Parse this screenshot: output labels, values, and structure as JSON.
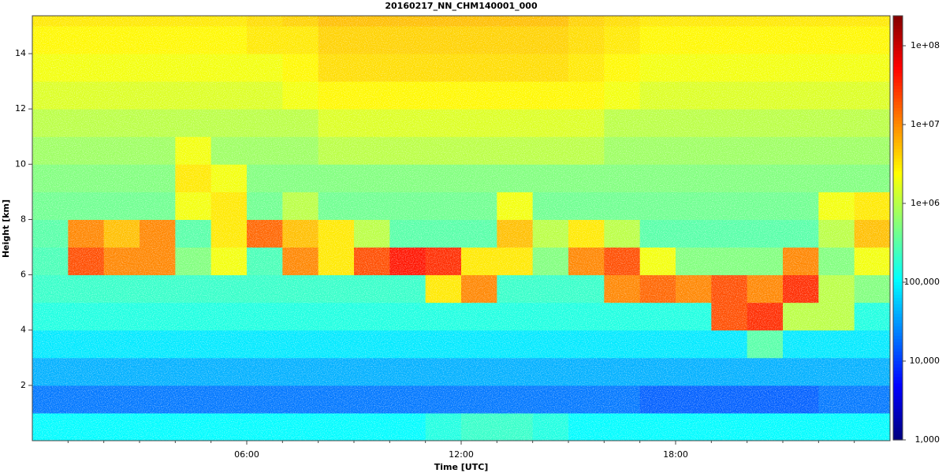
{
  "chart_data": {
    "type": "heatmap",
    "title": "20160217_NN_CHM140001_000",
    "xlabel": "Time [UTC]",
    "ylabel": "Height [km]",
    "xlim": [
      0,
      24
    ],
    "ylim": [
      0,
      15.37
    ],
    "xticks": [
      {
        "value": 6,
        "label": "06:00"
      },
      {
        "value": 12,
        "label": "12:00"
      },
      {
        "value": 18,
        "label": "18:00"
      }
    ],
    "xminor_ticks": [
      1,
      2,
      3,
      4,
      5,
      7,
      8,
      9,
      10,
      11,
      13,
      14,
      15,
      16,
      17,
      19,
      20,
      21,
      22,
      23
    ],
    "yticks": [
      2,
      4,
      6,
      8,
      10,
      12,
      14
    ],
    "xbins": [
      0,
      1,
      2,
      3,
      4,
      5,
      6,
      7,
      8,
      9,
      10,
      11,
      12,
      13,
      14,
      15,
      16,
      17,
      18,
      19,
      20,
      21,
      22,
      23,
      24
    ],
    "ybins": [
      0,
      1,
      2,
      3,
      4,
      5,
      6,
      7,
      8,
      9,
      10,
      11,
      12,
      13,
      14,
      15,
      15.37
    ],
    "z": [
      [
        100000.0,
        100000.0,
        100000.0,
        100000.0,
        100000.0,
        100000.0,
        100000.0,
        100000.0,
        100000.0,
        100000.0,
        100000.0,
        150000.0,
        200000.0,
        200000.0,
        150000.0,
        100000.0,
        100000.0,
        100000.0,
        100000.0,
        100000.0,
        100000.0,
        100000.0,
        100000.0,
        100000.0
      ],
      [
        20000.0,
        20000.0,
        20000.0,
        20000.0,
        20000.0,
        20000.0,
        20000.0,
        20000.0,
        20000.0,
        20000.0,
        20000.0,
        20000.0,
        20000.0,
        20000.0,
        20000.0,
        20000.0,
        20000.0,
        15000.0,
        15000.0,
        15000.0,
        15000.0,
        15000.0,
        20000.0,
        20000.0
      ],
      [
        40000.0,
        40000.0,
        40000.0,
        40000.0,
        40000.0,
        40000.0,
        40000.0,
        40000.0,
        40000.0,
        40000.0,
        40000.0,
        40000.0,
        40000.0,
        40000.0,
        40000.0,
        40000.0,
        40000.0,
        40000.0,
        40000.0,
        40000.0,
        40000.0,
        40000.0,
        40000.0,
        40000.0
      ],
      [
        80000.0,
        80000.0,
        80000.0,
        80000.0,
        80000.0,
        80000.0,
        80000.0,
        80000.0,
        80000.0,
        80000.0,
        80000.0,
        80000.0,
        80000.0,
        80000.0,
        80000.0,
        80000.0,
        80000.0,
        80000.0,
        80000.0,
        80000.0,
        300000.0,
        80000.0,
        80000.0,
        80000.0
      ],
      [
        150000.0,
        150000.0,
        150000.0,
        150000.0,
        150000.0,
        150000.0,
        150000.0,
        150000.0,
        150000.0,
        150000.0,
        150000.0,
        150000.0,
        150000.0,
        150000.0,
        150000.0,
        150000.0,
        150000.0,
        150000.0,
        150000.0,
        20000000.0,
        30000000.0,
        1000000.0,
        1000000.0,
        150000.0
      ],
      [
        200000.0,
        200000.0,
        200000.0,
        200000.0,
        200000.0,
        200000.0,
        200000.0,
        200000.0,
        200000.0,
        200000.0,
        200000.0,
        3000000.0,
        10000000.0,
        200000.0,
        200000.0,
        200000.0,
        10000000.0,
        15000000.0,
        10000000.0,
        20000000.0,
        10000000.0,
        30000000.0,
        1000000.0,
        500000.0
      ],
      [
        250000.0,
        20000000.0,
        10000000.0,
        10000000.0,
        500000.0,
        2000000.0,
        250000.0,
        10000000.0,
        3000000.0,
        20000000.0,
        40000000.0,
        30000000.0,
        3000000.0,
        3000000.0,
        500000.0,
        10000000.0,
        20000000.0,
        2000000.0,
        500000.0,
        500000.0,
        500000.0,
        10000000.0,
        500000.0,
        2000000.0
      ],
      [
        300000.0,
        10000000.0,
        5000000.0,
        10000000.0,
        300000.0,
        3000000.0,
        15000000.0,
        5000000.0,
        3000000.0,
        1000000.0,
        300000.0,
        300000.0,
        300000.0,
        5000000.0,
        1000000.0,
        3000000.0,
        1000000.0,
        300000.0,
        300000.0,
        300000.0,
        300000.0,
        300000.0,
        1000000.0,
        5000000.0
      ],
      [
        400000.0,
        400000.0,
        400000.0,
        400000.0,
        2000000.0,
        3000000.0,
        400000.0,
        1000000.0,
        400000.0,
        400000.0,
        400000.0,
        400000.0,
        400000.0,
        2000000.0,
        400000.0,
        400000.0,
        400000.0,
        400000.0,
        400000.0,
        400000.0,
        400000.0,
        400000.0,
        2000000.0,
        3000000.0
      ],
      [
        500000.0,
        500000.0,
        500000.0,
        500000.0,
        3000000.0,
        2000000.0,
        500000.0,
        500000.0,
        500000.0,
        500000.0,
        500000.0,
        500000.0,
        500000.0,
        500000.0,
        500000.0,
        500000.0,
        500000.0,
        500000.0,
        500000.0,
        500000.0,
        500000.0,
        500000.0,
        500000.0,
        500000.0
      ],
      [
        700000.0,
        700000.0,
        700000.0,
        700000.0,
        2000000.0,
        700000.0,
        700000.0,
        700000.0,
        1000000.0,
        1000000.0,
        1000000.0,
        1000000.0,
        1000000.0,
        1000000.0,
        1000000.0,
        1000000.0,
        700000.0,
        700000.0,
        700000.0,
        700000.0,
        700000.0,
        700000.0,
        700000.0,
        700000.0
      ],
      [
        1000000.0,
        1000000.0,
        1000000.0,
        1000000.0,
        1000000.0,
        1000000.0,
        1000000.0,
        1000000.0,
        1500000.0,
        1500000.0,
        1500000.0,
        1500000.0,
        1500000.0,
        1500000.0,
        1500000.0,
        1500000.0,
        1000000.0,
        1000000.0,
        1000000.0,
        1000000.0,
        1000000.0,
        1000000.0,
        1000000.0,
        1000000.0
      ],
      [
        1500000.0,
        1500000.0,
        1500000.0,
        1500000.0,
        1500000.0,
        1500000.0,
        1500000.0,
        2000000.0,
        2500000.0,
        2500000.0,
        2500000.0,
        2500000.0,
        2500000.0,
        2500000.0,
        2500000.0,
        2500000.0,
        2000000.0,
        1500000.0,
        1500000.0,
        1500000.0,
        1500000.0,
        1500000.0,
        1500000.0,
        1500000.0
      ],
      [
        2000000.0,
        2000000.0,
        2000000.0,
        2000000.0,
        2000000.0,
        2000000.0,
        2000000.0,
        2500000.0,
        3500000.0,
        3500000.0,
        3500000.0,
        3500000.0,
        3500000.0,
        3500000.0,
        3500000.0,
        3000000.0,
        2500000.0,
        2000000.0,
        2000000.0,
        2000000.0,
        2000000.0,
        2000000.0,
        2000000.0,
        2000000.0
      ],
      [
        2500000.0,
        2500000.0,
        2500000.0,
        2500000.0,
        2500000.0,
        2500000.0,
        3000000.0,
        3000000.0,
        4000000.0,
        4000000.0,
        4000000.0,
        4000000.0,
        4000000.0,
        4000000.0,
        4000000.0,
        3500000.0,
        3000000.0,
        2500000.0,
        2500000.0,
        2500000.0,
        2500000.0,
        2500000.0,
        2500000.0,
        2500000.0
      ],
      [
        3000000.0,
        3000000.0,
        3000000.0,
        3000000.0,
        3000000.0,
        3000000.0,
        3500000.0,
        4000000.0,
        5000000.0,
        5000000.0,
        5000000.0,
        5000000.0,
        5000000.0,
        5000000.0,
        5000000.0,
        4000000.0,
        3500000.0,
        3000000.0,
        3000000.0,
        3000000.0,
        3000000.0,
        3000000.0,
        3000000.0,
        3000000.0
      ]
    ],
    "colorbar": {
      "scale": "log",
      "colormap": "jet",
      "lim": [
        1000,
        240000000
      ],
      "ticks": [
        {
          "value": 1000,
          "label": "1,000"
        },
        {
          "value": 10000,
          "label": "10,000"
        },
        {
          "value": 100000,
          "label": "100,000"
        },
        {
          "value": 1000000,
          "label": "1e+06"
        },
        {
          "value": 10000000,
          "label": "1e+07"
        },
        {
          "value": 100000000,
          "label": "1e+08"
        }
      ]
    }
  }
}
